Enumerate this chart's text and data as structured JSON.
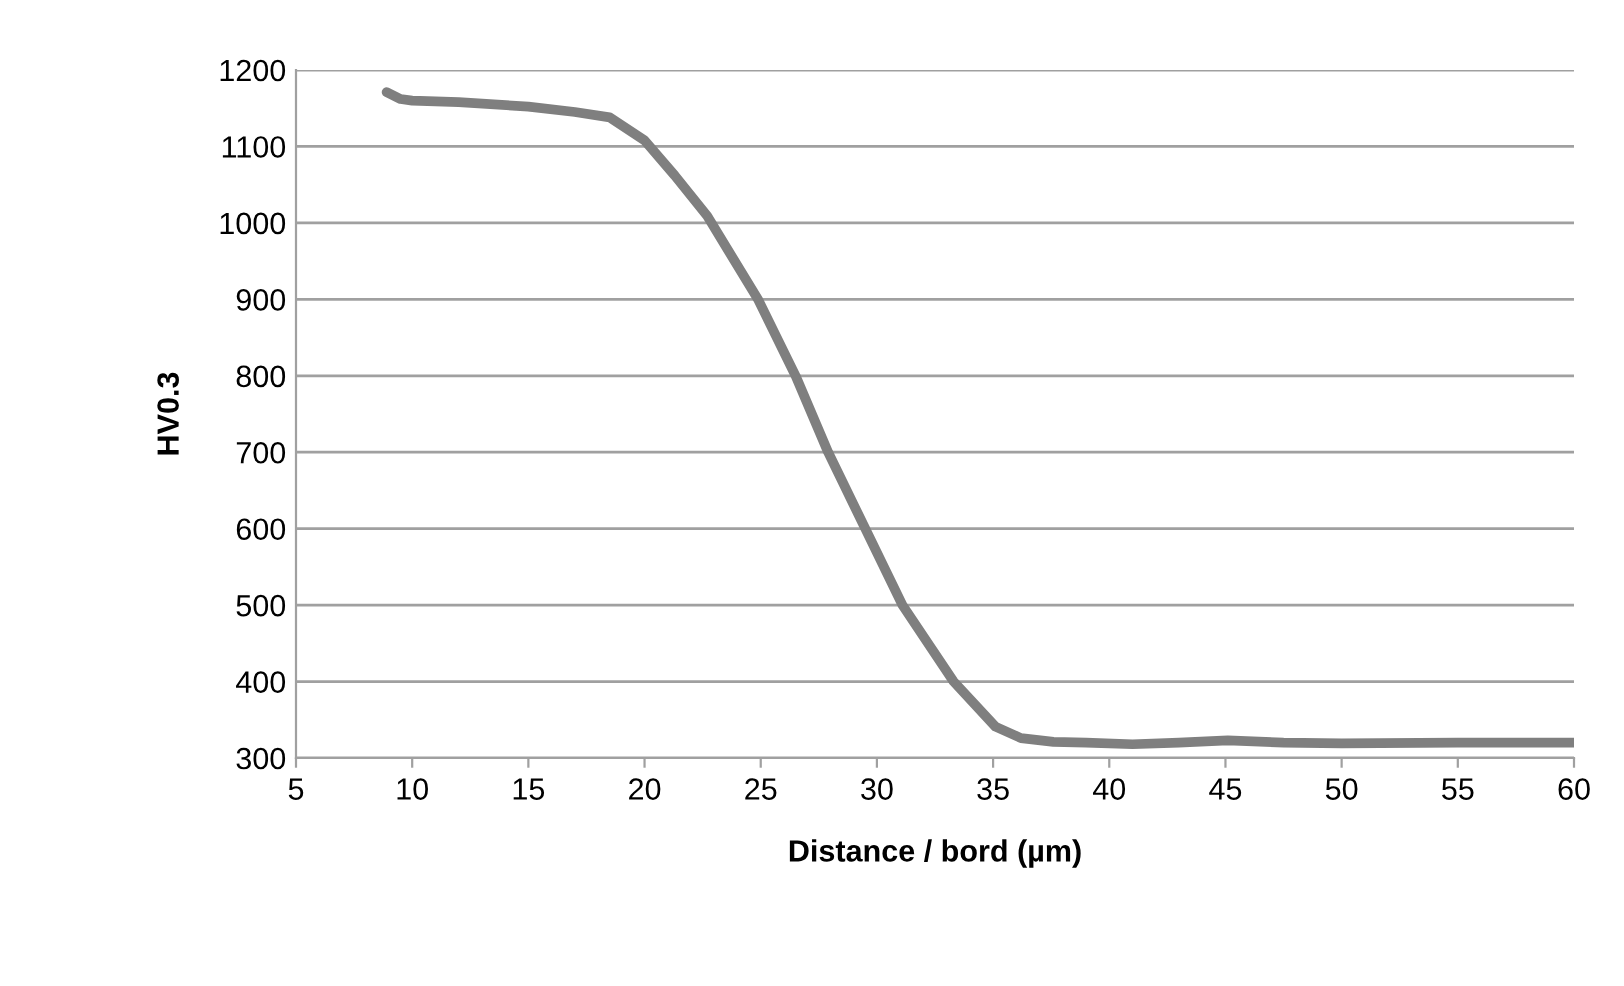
{
  "chart_data": {
    "type": "line",
    "xlabel": "Distance / bord (µm)",
    "ylabel": "HV0.3",
    "x": [
      8.9,
      9.5,
      10,
      12,
      15,
      17,
      18.5,
      20,
      21.3,
      22.7,
      24.9,
      26.5,
      27.9,
      29.5,
      31.1,
      33.3,
      35.1,
      36.2,
      37.6,
      39,
      41,
      43,
      45.1,
      47.5,
      50,
      55,
      60
    ],
    "series": [
      {
        "color": "#7f7f7f",
        "values": [
          1171,
          1162,
          1160,
          1158,
          1152,
          1145,
          1138,
          1108,
          1062,
          1009,
          899,
          800,
          700,
          600,
          500,
          400,
          341,
          326,
          321,
          320,
          318,
          320,
          323,
          320,
          319,
          320,
          320
        ]
      }
    ],
    "xlim": [
      5,
      60
    ],
    "ylim": [
      300,
      1200
    ],
    "xticks": [
      5,
      10,
      15,
      20,
      25,
      30,
      35,
      40,
      45,
      50,
      55,
      60
    ],
    "yticks": [
      300,
      400,
      500,
      600,
      700,
      800,
      900,
      1000,
      1100,
      1200
    ],
    "grid": "y",
    "legend": false
  }
}
